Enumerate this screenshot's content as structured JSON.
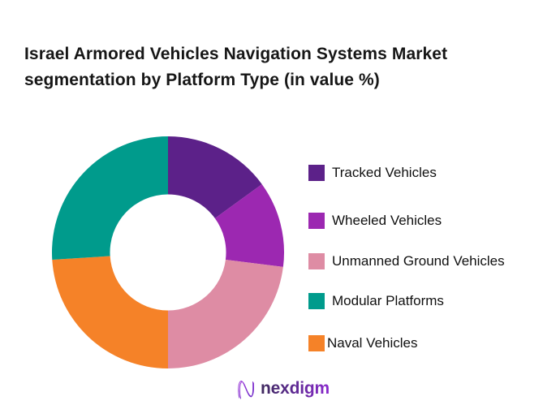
{
  "page": {
    "background_color": "#ffffff"
  },
  "header": {
    "title_line1": "Israel Armored Vehicles Navigation Systems Market",
    "title_line2": "segmentation by Platform Type (in value %)",
    "title_full": "Israel Armored Vehicles Navigation Systems Market segmentation by Platform Type (in value %)"
  },
  "chart_data": {
    "type": "pie",
    "subtype": "donut",
    "title": "Israel Armored Vehicles Navigation Systems Market segmentation by Platform Type (in value %)",
    "unit": "% of market value",
    "start_angle_deg": 0,
    "direction": "clockwise",
    "inner_radius_ratio": 0.5,
    "data_labels_shown": false,
    "segments_clockwise_from_top": [
      {
        "label": "Tracked Vehicles",
        "value": 15,
        "color": "#5C2189"
      },
      {
        "label": "Wheeled Vehicles",
        "value": 12,
        "color": "#9C28B1"
      },
      {
        "label": "Unmanned Ground Vehicles",
        "value": 23,
        "color": "#DE8CA4"
      },
      {
        "label": "Naval Vehicles",
        "value": 24,
        "color": "#F58228"
      },
      {
        "label": "Modular Platforms",
        "value": 26,
        "color": "#009B8C"
      }
    ],
    "legend_position": "right",
    "legend": [
      {
        "label": "Tracked Vehicles",
        "color": "#5C2189"
      },
      {
        "label": "Wheeled Vehicles",
        "color": "#9C28B1"
      },
      {
        "label": "Unmanned Ground Vehicles",
        "color": "#DE8CA4"
      },
      {
        "label": "Modular Platforms",
        "color": "#009B8C"
      },
      {
        "label": "Naval Vehicles",
        "color": "#F58228"
      }
    ]
  },
  "footer": {
    "logo_text": "nexdigm",
    "logo_icon": "nexdigm-n-scribble-icon"
  }
}
